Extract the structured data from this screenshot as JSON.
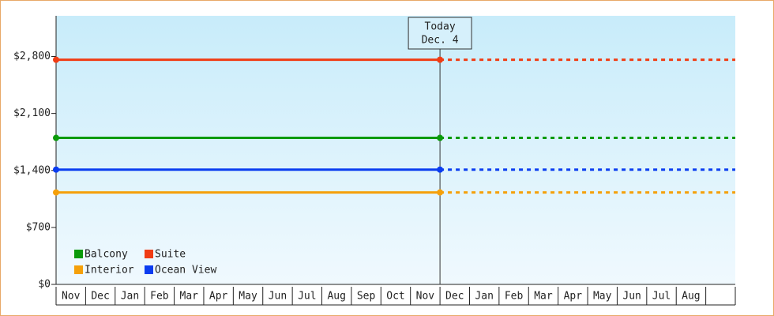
{
  "chart_data": {
    "type": "line",
    "annotation": {
      "title": "Today",
      "date": "Dec. 4"
    },
    "categories": [
      "Nov",
      "Dec",
      "Jan",
      "Feb",
      "Mar",
      "Apr",
      "May",
      "Jun",
      "Jul",
      "Aug",
      "Sep",
      "Oct",
      "Nov",
      "Dec",
      "Jan",
      "Feb",
      "Mar",
      "Apr",
      "May",
      "Jun",
      "Jul",
      "Aug",
      null
    ],
    "series": [
      {
        "name": "Balcony",
        "color": "#0a9a0a",
        "values": [
          1800,
          1800,
          1800,
          1800,
          1800,
          1800,
          1800,
          1800,
          1800,
          1800,
          1800,
          1800,
          1800,
          1800,
          null,
          null,
          null,
          null,
          null,
          null,
          null,
          null,
          null
        ]
      },
      {
        "name": "Suite",
        "color": "#f03c14",
        "values": [
          2760,
          2760,
          2760,
          2760,
          2760,
          2760,
          2760,
          2760,
          2760,
          2760,
          2760,
          2760,
          2760,
          2760,
          null,
          null,
          null,
          null,
          null,
          null,
          null,
          null,
          null
        ]
      },
      {
        "name": "Interior",
        "color": "#f5a00a",
        "values": [
          1130,
          1130,
          1130,
          1130,
          1130,
          1130,
          1130,
          1130,
          1130,
          1130,
          1130,
          1130,
          1130,
          1130,
          null,
          null,
          null,
          null,
          null,
          null,
          null,
          null,
          null
        ]
      },
      {
        "name": "Ocean View",
        "color": "#0a3cf0",
        "values": [
          1410,
          1410,
          1410,
          1410,
          1410,
          1410,
          1410,
          1410,
          1410,
          1410,
          1410,
          1410,
          1410,
          1410,
          null,
          null,
          null,
          null,
          null,
          null,
          null,
          null,
          null
        ]
      }
    ],
    "ylim": [
      0,
      3300
    ],
    "yticks": [
      {
        "value": 0,
        "label": "$0"
      },
      {
        "value": 700,
        "label": "$700"
      },
      {
        "value": 1400,
        "label": "$1,400"
      },
      {
        "value": 2100,
        "label": "$2,100"
      },
      {
        "value": 2800,
        "label": "$2,800"
      }
    ],
    "grid": false
  }
}
